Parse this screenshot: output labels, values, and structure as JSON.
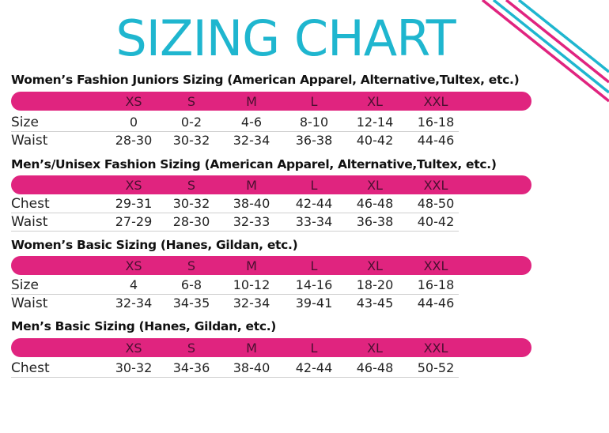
{
  "title": "SIZING CHART",
  "colors": {
    "title": "#1fb6cf",
    "bar": "#e0247f",
    "stripe_pink": "#e0247f",
    "stripe_cyan": "#1fb6cf"
  },
  "sections": [
    {
      "title": "Women’s Fashion Juniors Sizing (American Apparel, Alternative,Tultex, etc.)",
      "sizes": [
        "XS",
        "S",
        "M",
        "L",
        "XL",
        "XXL"
      ],
      "rows": [
        {
          "label": "Size",
          "values": [
            "0",
            "0-2",
            "4-6",
            "8-10",
            "12-14",
            "16-18"
          ]
        },
        {
          "label": "Waist",
          "values": [
            "28-30",
            "30-32",
            "32-34",
            "36-38",
            "40-42",
            "44-46"
          ]
        }
      ]
    },
    {
      "title": "Men’s/Unisex Fashion Sizing (American Apparel, Alternative,Tultex, etc.)",
      "sizes": [
        "XS",
        "S",
        "M",
        "L",
        "XL",
        "XXL"
      ],
      "rows": [
        {
          "label": "Chest",
          "values": [
            "29-31",
            "30-32",
            "38-40",
            "42-44",
            "46-48",
            "48-50"
          ]
        },
        {
          "label": "Waist",
          "values": [
            "27-29",
            "28-30",
            "32-33",
            "33-34",
            "36-38",
            "40-42"
          ]
        }
      ]
    },
    {
      "title": "Women’s Basic Sizing (Hanes, Gildan, etc.)",
      "sizes": [
        "XS",
        "S",
        "M",
        "L",
        "XL",
        "XXL"
      ],
      "rows": [
        {
          "label": "Size",
          "values": [
            "4",
            "6-8",
            "10-12",
            "14-16",
            "18-20",
            "16-18"
          ]
        },
        {
          "label": "Waist",
          "values": [
            "32-34",
            "34-35",
            "32-34",
            "39-41",
            "43-45",
            "44-46"
          ]
        }
      ]
    },
    {
      "title": "Men’s Basic Sizing (Hanes, Gildan, etc.)",
      "sizes": [
        "XS",
        "S",
        "M",
        "L",
        "XL",
        "XXL"
      ],
      "rows": [
        {
          "label": "Chest",
          "values": [
            "30-32",
            "34-36",
            "38-40",
            "42-44",
            "46-48",
            "50-52"
          ]
        }
      ]
    }
  ]
}
